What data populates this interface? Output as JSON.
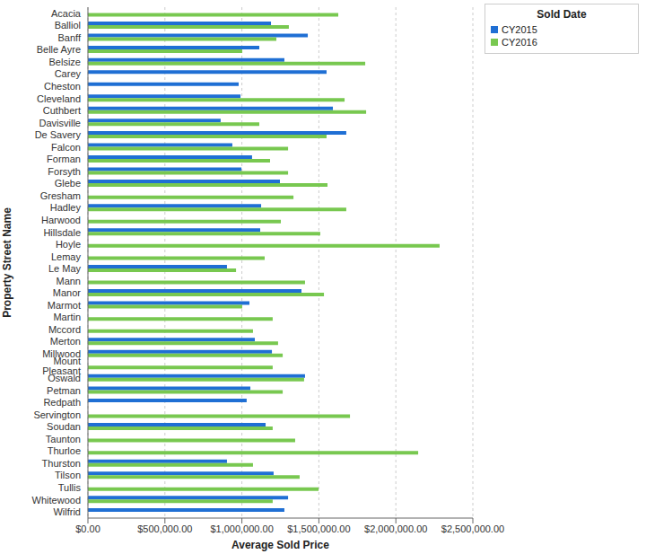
{
  "chart_data": {
    "type": "bar",
    "orientation": "horizontal",
    "x_label": "Average Sold Price",
    "y_label": "Property Street Name",
    "legend": "top-right",
    "legend_title": "Sold Date",
    "grid": true,
    "categories": [
      "Acacia",
      "Balliol",
      "Banff",
      "Belle Ayre",
      "Belsize",
      "Carey",
      "Cheston",
      "Cleveland",
      "Cuthbert",
      "Davisville",
      "De Savery",
      "Falcon",
      "Forman",
      "Forsyth",
      "Glebe",
      "Gresham",
      "Hadley",
      "Harwood",
      "Hillsdale",
      "Hoyle",
      "Lemay",
      "Le May",
      "Mann",
      "Manor",
      "Marmot",
      "Martin",
      "Mccord",
      "Merton",
      "Millwood",
      "Mount Pleasant",
      "Oswald",
      "Petman",
      "Redpath",
      "Servington",
      "Soudan",
      "Taunton",
      "Thurloe",
      "Thurston",
      "Tilson",
      "Tullis",
      "Whitewood",
      "Wilfrid"
    ],
    "series": [
      {
        "name": "CY2015",
        "color": "#1f6fd4",
        "values": [
          null,
          1189000,
          1428000,
          1113000,
          1276000,
          1550000,
          979000,
          991000,
          1591000,
          862000,
          1678000,
          938000,
          1066000,
          997000,
          1247000,
          null,
          1125000,
          null,
          1119000,
          null,
          null,
          903000,
          null,
          1387000,
          1049000,
          null,
          null,
          1084000,
          1195000,
          null,
          1410000,
          1055000,
          1031000,
          null,
          1154000,
          null,
          null,
          903000,
          1206000,
          null,
          1300000,
          1276000
        ]
      },
      {
        "name": "CY2016",
        "color": "#78c850",
        "values": [
          1626000,
          1305000,
          1224000,
          1002000,
          1801000,
          null,
          null,
          1667000,
          1807000,
          1113000,
          1550000,
          1300000,
          1183000,
          1300000,
          1556000,
          1335000,
          1678000,
          1253000,
          1509000,
          2284000,
          1148000,
          962000,
          1410000,
          1533000,
          1002000,
          1200000,
          1072000,
          1235000,
          1265000,
          1200000,
          1404000,
          1265000,
          null,
          1702000,
          1200000,
          1346000,
          2145000,
          1072000,
          1375000,
          1498000,
          1200000,
          null
        ]
      }
    ],
    "xlim": [
      0,
      2500000
    ],
    "xticks": [
      {
        "value": 0,
        "label": "$0.00"
      },
      {
        "value": 500000,
        "label": "$500,000.00"
      },
      {
        "value": 1000000,
        "label": "$1,000,000.00"
      },
      {
        "value": 1500000,
        "label": "$1,500,000.00"
      },
      {
        "value": 2000000,
        "label": "$2,000,000.00"
      },
      {
        "value": 2500000,
        "label": "$2,500,000.00"
      }
    ]
  }
}
